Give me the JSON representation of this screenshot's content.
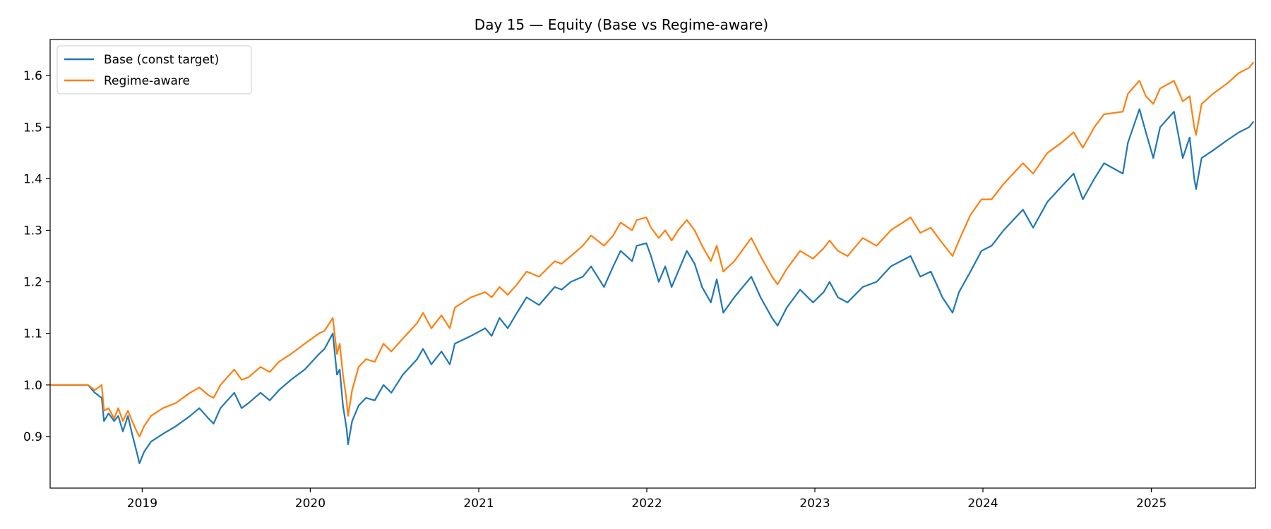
{
  "chart_data": {
    "type": "line",
    "title": "Day 15 — Equity (Base vs Regime-aware)",
    "xlabel": "",
    "ylabel": "",
    "x_range": [
      "2018-06-15",
      "2025-08-15"
    ],
    "ylim": [
      0.8,
      1.67
    ],
    "x_ticks": [
      "2019",
      "2020",
      "2021",
      "2022",
      "2023",
      "2024",
      "2025"
    ],
    "y_ticks": [
      "0.9",
      "1.0",
      "1.1",
      "1.2",
      "1.3",
      "1.4",
      "1.5",
      "1.6"
    ],
    "grid": false,
    "legend_position": "top-left",
    "series": [
      {
        "name": "Base (const target)",
        "color": "#1f77b4",
        "points": [
          [
            "2018-06-15",
            1.0
          ],
          [
            "2018-08-15",
            1.0
          ],
          [
            "2018-09-05",
            1.0
          ],
          [
            "2018-09-20",
            0.985
          ],
          [
            "2018-10-05",
            0.975
          ],
          [
            "2018-10-10",
            0.93
          ],
          [
            "2018-10-20",
            0.945
          ],
          [
            "2018-11-01",
            0.93
          ],
          [
            "2018-11-10",
            0.94
          ],
          [
            "2018-11-20",
            0.91
          ],
          [
            "2018-12-01",
            0.94
          ],
          [
            "2018-12-10",
            0.905
          ],
          [
            "2018-12-20",
            0.87
          ],
          [
            "2018-12-26",
            0.848
          ],
          [
            "2019-01-05",
            0.87
          ],
          [
            "2019-01-20",
            0.89
          ],
          [
            "2019-02-15",
            0.905
          ],
          [
            "2019-03-15",
            0.92
          ],
          [
            "2019-04-15",
            0.94
          ],
          [
            "2019-05-05",
            0.955
          ],
          [
            "2019-05-25",
            0.935
          ],
          [
            "2019-06-05",
            0.925
          ],
          [
            "2019-06-20",
            0.955
          ],
          [
            "2019-07-20",
            0.985
          ],
          [
            "2019-08-05",
            0.955
          ],
          [
            "2019-08-20",
            0.965
          ],
          [
            "2019-09-15",
            0.985
          ],
          [
            "2019-10-05",
            0.97
          ],
          [
            "2019-10-25",
            0.99
          ],
          [
            "2019-11-20",
            1.01
          ],
          [
            "2019-12-20",
            1.03
          ],
          [
            "2020-01-20",
            1.06
          ],
          [
            "2020-02-01",
            1.07
          ],
          [
            "2020-02-19",
            1.1
          ],
          [
            "2020-02-28",
            1.02
          ],
          [
            "2020-03-05",
            1.03
          ],
          [
            "2020-03-12",
            0.96
          ],
          [
            "2020-03-20",
            0.915
          ],
          [
            "2020-03-23",
            0.885
          ],
          [
            "2020-04-01",
            0.93
          ],
          [
            "2020-04-15",
            0.96
          ],
          [
            "2020-05-01",
            0.975
          ],
          [
            "2020-05-20",
            0.97
          ],
          [
            "2020-06-08",
            1.0
          ],
          [
            "2020-06-25",
            0.985
          ],
          [
            "2020-07-20",
            1.02
          ],
          [
            "2020-08-20",
            1.05
          ],
          [
            "2020-09-02",
            1.07
          ],
          [
            "2020-09-20",
            1.04
          ],
          [
            "2020-10-12",
            1.065
          ],
          [
            "2020-10-30",
            1.04
          ],
          [
            "2020-11-10",
            1.08
          ],
          [
            "2020-12-15",
            1.095
          ],
          [
            "2021-01-15",
            1.11
          ],
          [
            "2021-01-29",
            1.095
          ],
          [
            "2021-02-15",
            1.13
          ],
          [
            "2021-03-05",
            1.11
          ],
          [
            "2021-03-25",
            1.14
          ],
          [
            "2021-04-15",
            1.17
          ],
          [
            "2021-05-12",
            1.155
          ],
          [
            "2021-06-15",
            1.19
          ],
          [
            "2021-06-30",
            1.185
          ],
          [
            "2021-07-20",
            1.2
          ],
          [
            "2021-08-15",
            1.21
          ],
          [
            "2021-09-02",
            1.23
          ],
          [
            "2021-09-30",
            1.19
          ],
          [
            "2021-10-20",
            1.23
          ],
          [
            "2021-11-05",
            1.26
          ],
          [
            "2021-11-30",
            1.24
          ],
          [
            "2021-12-10",
            1.27
          ],
          [
            "2021-12-31",
            1.275
          ],
          [
            "2022-01-10",
            1.25
          ],
          [
            "2022-01-27",
            1.2
          ],
          [
            "2022-02-10",
            1.23
          ],
          [
            "2022-02-24",
            1.19
          ],
          [
            "2022-03-10",
            1.22
          ],
          [
            "2022-03-29",
            1.26
          ],
          [
            "2022-04-15",
            1.235
          ],
          [
            "2022-05-01",
            1.19
          ],
          [
            "2022-05-20",
            1.16
          ],
          [
            "2022-06-02",
            1.205
          ],
          [
            "2022-06-16",
            1.14
          ],
          [
            "2022-07-10",
            1.17
          ],
          [
            "2022-08-16",
            1.21
          ],
          [
            "2022-09-05",
            1.17
          ],
          [
            "2022-09-30",
            1.13
          ],
          [
            "2022-10-12",
            1.115
          ],
          [
            "2022-11-01",
            1.15
          ],
          [
            "2022-11-30",
            1.185
          ],
          [
            "2022-12-28",
            1.16
          ],
          [
            "2023-01-20",
            1.18
          ],
          [
            "2023-02-02",
            1.2
          ],
          [
            "2023-02-20",
            1.17
          ],
          [
            "2023-03-13",
            1.16
          ],
          [
            "2023-04-15",
            1.19
          ],
          [
            "2023-05-15",
            1.2
          ],
          [
            "2023-06-15",
            1.23
          ],
          [
            "2023-07-28",
            1.25
          ],
          [
            "2023-08-18",
            1.21
          ],
          [
            "2023-09-10",
            1.22
          ],
          [
            "2023-10-05",
            1.17
          ],
          [
            "2023-10-27",
            1.14
          ],
          [
            "2023-11-10",
            1.18
          ],
          [
            "2023-12-05",
            1.22
          ],
          [
            "2023-12-29",
            1.26
          ],
          [
            "2024-01-20",
            1.27
          ],
          [
            "2024-02-15",
            1.3
          ],
          [
            "2024-03-28",
            1.34
          ],
          [
            "2024-04-19",
            1.305
          ],
          [
            "2024-05-20",
            1.355
          ],
          [
            "2024-06-20",
            1.385
          ],
          [
            "2024-07-16",
            1.41
          ],
          [
            "2024-08-05",
            1.36
          ],
          [
            "2024-08-30",
            1.4
          ],
          [
            "2024-09-20",
            1.43
          ],
          [
            "2024-10-31",
            1.41
          ],
          [
            "2024-11-11",
            1.47
          ],
          [
            "2024-12-06",
            1.535
          ],
          [
            "2024-12-20",
            1.49
          ],
          [
            "2025-01-05",
            1.44
          ],
          [
            "2025-01-20",
            1.5
          ],
          [
            "2025-02-19",
            1.53
          ],
          [
            "2025-03-10",
            1.44
          ],
          [
            "2025-03-25",
            1.48
          ],
          [
            "2025-04-04",
            1.4
          ],
          [
            "2025-04-08",
            1.38
          ],
          [
            "2025-04-20",
            1.44
          ],
          [
            "2025-05-15",
            1.455
          ],
          [
            "2025-06-15",
            1.475
          ],
          [
            "2025-07-10",
            1.49
          ],
          [
            "2025-08-01",
            1.5
          ],
          [
            "2025-08-10",
            1.51
          ]
        ]
      },
      {
        "name": "Regime-aware",
        "color": "#ff7f0e",
        "points": [
          [
            "2018-06-15",
            1.0
          ],
          [
            "2018-08-15",
            1.0
          ],
          [
            "2018-09-05",
            1.0
          ],
          [
            "2018-09-20",
            0.99
          ],
          [
            "2018-10-05",
            1.0
          ],
          [
            "2018-10-10",
            0.95
          ],
          [
            "2018-10-20",
            0.955
          ],
          [
            "2018-11-01",
            0.935
          ],
          [
            "2018-11-10",
            0.955
          ],
          [
            "2018-11-20",
            0.93
          ],
          [
            "2018-12-01",
            0.95
          ],
          [
            "2018-12-10",
            0.93
          ],
          [
            "2018-12-20",
            0.91
          ],
          [
            "2018-12-26",
            0.9
          ],
          [
            "2019-01-05",
            0.92
          ],
          [
            "2019-01-20",
            0.94
          ],
          [
            "2019-02-15",
            0.955
          ],
          [
            "2019-03-15",
            0.965
          ],
          [
            "2019-04-15",
            0.985
          ],
          [
            "2019-05-05",
            0.995
          ],
          [
            "2019-05-25",
            0.98
          ],
          [
            "2019-06-05",
            0.975
          ],
          [
            "2019-06-20",
            1.0
          ],
          [
            "2019-07-20",
            1.03
          ],
          [
            "2019-08-05",
            1.01
          ],
          [
            "2019-08-20",
            1.015
          ],
          [
            "2019-09-15",
            1.035
          ],
          [
            "2019-10-05",
            1.025
          ],
          [
            "2019-10-25",
            1.045
          ],
          [
            "2019-11-20",
            1.06
          ],
          [
            "2019-12-20",
            1.08
          ],
          [
            "2020-01-20",
            1.1
          ],
          [
            "2020-02-01",
            1.105
          ],
          [
            "2020-02-19",
            1.13
          ],
          [
            "2020-02-28",
            1.06
          ],
          [
            "2020-03-05",
            1.08
          ],
          [
            "2020-03-12",
            1.02
          ],
          [
            "2020-03-20",
            0.97
          ],
          [
            "2020-03-23",
            0.94
          ],
          [
            "2020-04-01",
            0.99
          ],
          [
            "2020-04-15",
            1.035
          ],
          [
            "2020-05-01",
            1.05
          ],
          [
            "2020-05-20",
            1.045
          ],
          [
            "2020-06-08",
            1.08
          ],
          [
            "2020-06-25",
            1.065
          ],
          [
            "2020-07-20",
            1.09
          ],
          [
            "2020-08-20",
            1.12
          ],
          [
            "2020-09-02",
            1.14
          ],
          [
            "2020-09-20",
            1.11
          ],
          [
            "2020-10-12",
            1.135
          ],
          [
            "2020-10-30",
            1.11
          ],
          [
            "2020-11-10",
            1.15
          ],
          [
            "2020-12-15",
            1.17
          ],
          [
            "2021-01-15",
            1.18
          ],
          [
            "2021-01-29",
            1.17
          ],
          [
            "2021-02-15",
            1.19
          ],
          [
            "2021-03-05",
            1.175
          ],
          [
            "2021-03-25",
            1.195
          ],
          [
            "2021-04-15",
            1.22
          ],
          [
            "2021-05-12",
            1.21
          ],
          [
            "2021-06-15",
            1.24
          ],
          [
            "2021-06-30",
            1.235
          ],
          [
            "2021-07-20",
            1.25
          ],
          [
            "2021-08-15",
            1.27
          ],
          [
            "2021-09-02",
            1.29
          ],
          [
            "2021-09-30",
            1.27
          ],
          [
            "2021-10-20",
            1.29
          ],
          [
            "2021-11-05",
            1.315
          ],
          [
            "2021-11-30",
            1.3
          ],
          [
            "2021-12-10",
            1.32
          ],
          [
            "2021-12-31",
            1.325
          ],
          [
            "2022-01-10",
            1.305
          ],
          [
            "2022-01-27",
            1.285
          ],
          [
            "2022-02-10",
            1.3
          ],
          [
            "2022-02-24",
            1.28
          ],
          [
            "2022-03-10",
            1.3
          ],
          [
            "2022-03-29",
            1.32
          ],
          [
            "2022-04-15",
            1.3
          ],
          [
            "2022-05-01",
            1.27
          ],
          [
            "2022-05-20",
            1.24
          ],
          [
            "2022-06-02",
            1.27
          ],
          [
            "2022-06-16",
            1.22
          ],
          [
            "2022-07-10",
            1.24
          ],
          [
            "2022-08-16",
            1.285
          ],
          [
            "2022-09-05",
            1.25
          ],
          [
            "2022-09-30",
            1.21
          ],
          [
            "2022-10-12",
            1.195
          ],
          [
            "2022-11-01",
            1.225
          ],
          [
            "2022-11-30",
            1.26
          ],
          [
            "2022-12-28",
            1.245
          ],
          [
            "2023-01-20",
            1.265
          ],
          [
            "2023-02-02",
            1.28
          ],
          [
            "2023-02-20",
            1.26
          ],
          [
            "2023-03-13",
            1.25
          ],
          [
            "2023-04-15",
            1.285
          ],
          [
            "2023-05-15",
            1.27
          ],
          [
            "2023-06-15",
            1.3
          ],
          [
            "2023-07-28",
            1.325
          ],
          [
            "2023-08-18",
            1.295
          ],
          [
            "2023-09-10",
            1.305
          ],
          [
            "2023-10-05",
            1.275
          ],
          [
            "2023-10-27",
            1.25
          ],
          [
            "2023-11-10",
            1.28
          ],
          [
            "2023-12-05",
            1.33
          ],
          [
            "2023-12-29",
            1.36
          ],
          [
            "2024-01-20",
            1.36
          ],
          [
            "2024-02-15",
            1.39
          ],
          [
            "2024-03-28",
            1.43
          ],
          [
            "2024-04-19",
            1.41
          ],
          [
            "2024-05-20",
            1.45
          ],
          [
            "2024-06-20",
            1.47
          ],
          [
            "2024-07-16",
            1.49
          ],
          [
            "2024-08-05",
            1.46
          ],
          [
            "2024-08-30",
            1.5
          ],
          [
            "2024-09-20",
            1.525
          ],
          [
            "2024-10-31",
            1.53
          ],
          [
            "2024-11-11",
            1.565
          ],
          [
            "2024-12-06",
            1.59
          ],
          [
            "2024-12-20",
            1.56
          ],
          [
            "2025-01-05",
            1.545
          ],
          [
            "2025-01-20",
            1.575
          ],
          [
            "2025-02-19",
            1.59
          ],
          [
            "2025-03-10",
            1.55
          ],
          [
            "2025-03-25",
            1.56
          ],
          [
            "2025-04-04",
            1.5
          ],
          [
            "2025-04-08",
            1.485
          ],
          [
            "2025-04-20",
            1.545
          ],
          [
            "2025-05-15",
            1.565
          ],
          [
            "2025-06-15",
            1.585
          ],
          [
            "2025-07-10",
            1.605
          ],
          [
            "2025-08-01",
            1.615
          ],
          [
            "2025-08-10",
            1.625
          ]
        ]
      }
    ]
  }
}
